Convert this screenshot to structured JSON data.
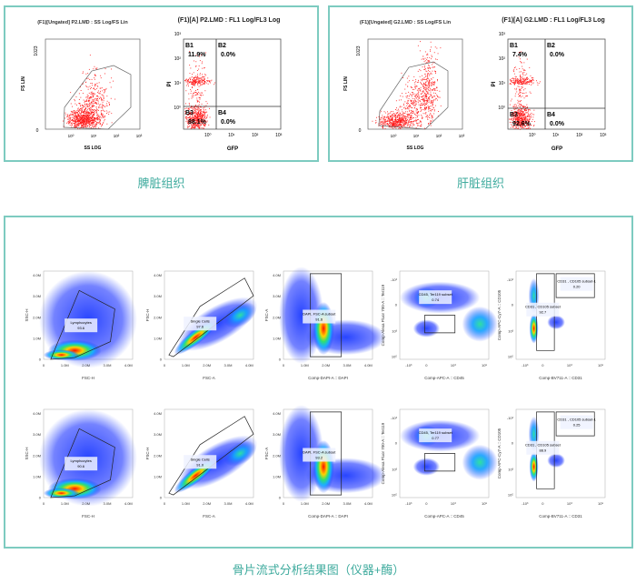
{
  "spleen": {
    "caption": "脾脏组织",
    "scatter": {
      "title": "(F1)[Ungated] P2.LMD : SS Log/FS Lin",
      "xlabel": "SS LOG",
      "ylabel": "FS LIN",
      "yticks": [
        "0",
        "1023"
      ],
      "xticks": [
        "10⁰",
        "10¹",
        "10²",
        "10³"
      ]
    },
    "quad": {
      "title": "(F1)[A] P2.LMD : FL1 Log/FL3 Log",
      "xlabel": "GFP",
      "ylabel": "PI",
      "yticks": [
        "10⁰",
        "10¹",
        "10²",
        "10³"
      ],
      "xticks": [
        "10⁰",
        "10¹",
        "10²",
        "10³"
      ],
      "quadrants": [
        {
          "name": "B1",
          "value": "11.9%"
        },
        {
          "name": "B2",
          "value": "0.0%"
        },
        {
          "name": "B3",
          "value": "88.1%"
        },
        {
          "name": "B4",
          "value": "0.0%"
        }
      ]
    }
  },
  "liver": {
    "caption": "肝脏组织",
    "scatter": {
      "title": "(F1)[Ungated] G2.LMD : SS Log/FS Lin",
      "xlabel": "SS LOG",
      "ylabel": "FS LIN",
      "yticks": [
        "0",
        "1023"
      ],
      "xticks": [
        "10⁰",
        "10¹",
        "10²",
        "10³"
      ]
    },
    "quad": {
      "title": "(F1)[A] G2.LMD : FL1 Log/FL3 Log",
      "xlabel": "GFP",
      "ylabel": "PI",
      "yticks": [
        "10⁰",
        "10¹",
        "10²",
        "10³"
      ],
      "xticks": [
        "10⁰",
        "10¹",
        "10²",
        "10³"
      ],
      "quadrants": [
        {
          "name": "B1",
          "value": "7.4%"
        },
        {
          "name": "B2",
          "value": "0.0%"
        },
        {
          "name": "B3",
          "value": "92.6%"
        },
        {
          "name": "B4",
          "value": "0.0%"
        }
      ]
    }
  },
  "bone": {
    "caption": "骨片流式分析结果图（仪器+酶）",
    "lin_ticks": [
      "0",
      "1.0M",
      "2.0M",
      "3.0M",
      "4.0M"
    ],
    "log_ticks": [
      "-10³",
      "0",
      "10³",
      "10⁵"
    ],
    "log_yticks": [
      "-10³",
      "0",
      "10³",
      "10⁵"
    ],
    "axes": [
      {
        "x": "FSC-H",
        "y": "SSC-H"
      },
      {
        "x": "FSC-A",
        "y": "FSC-H"
      },
      {
        "x": "Comp-DAPI-A :: DAPI",
        "y": "FSC-A"
      },
      {
        "x": "Comp-APC-A :: CD45",
        "y": "Comp-Alexa Fluor 700-A :: Ter119"
      },
      {
        "x": "Comp-BV711-A :: CD31",
        "y": "Comp-APC-Cy7-A :: CD105"
      }
    ],
    "rows": [
      {
        "gates": [
          {
            "label": "Lymphocytes",
            "value": "93.6"
          },
          {
            "label": "Single Cells",
            "value": "97.6"
          },
          {
            "label": "DAPI, FSC-A subset",
            "value": "91.6"
          },
          {
            "label": "CD45, Ter119 subset",
            "value": "0.74"
          },
          {
            "label": "CD31 , CD105 subset",
            "value": "92.7"
          },
          {
            "label": "CD31 , CD105 subset-1",
            "value": "0.20"
          }
        ]
      },
      {
        "gates": [
          {
            "label": "Lymphocytes",
            "value": "90.6"
          },
          {
            "label": "Single Cells",
            "value": "91.0"
          },
          {
            "label": "DAPI, FSC-A subset",
            "value": "93.2"
          },
          {
            "label": "CD45, Ter119 subset",
            "value": "0.77"
          },
          {
            "label": "CD31 , CD105 subset",
            "value": "88.9"
          },
          {
            "label": "CD31 , CD105 subset-1",
            "value": "0.25"
          }
        ]
      }
    ]
  },
  "colors": {
    "frame": "#7dcbc0",
    "caption": "#3fab9e",
    "dot": "#ff1a1a",
    "density_low": "#1020e0",
    "density_high": "#ff2000"
  }
}
